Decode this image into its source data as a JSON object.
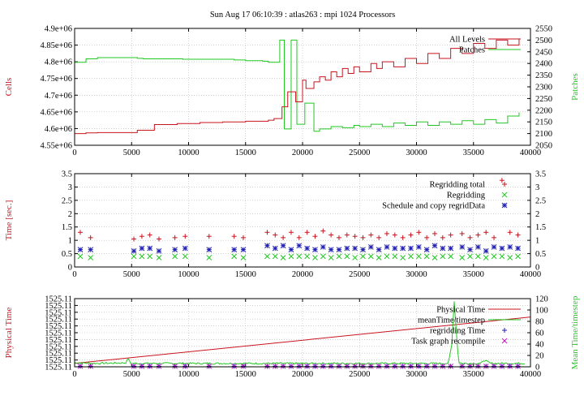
{
  "title": "Sun Aug 17 06:10:39 : atlas263 : mpi 1024 Processors",
  "colors": {
    "red": "#c8141e",
    "green": "#22c822",
    "blue": "#1e1eb4",
    "magenta": "#c814c8",
    "grid": "#b4b4b4"
  },
  "chart_data": [
    {
      "type": "line",
      "ylabel": "Cells",
      "y2label": "Patches",
      "xlim": [
        0,
        40000
      ],
      "xticks": [
        "0",
        "5000",
        "10000",
        "15000",
        "20000",
        "25000",
        "30000",
        "35000",
        "40000"
      ],
      "ylim": [
        4550000,
        4900000
      ],
      "yticks": [
        "4.55e+06",
        "4.6e+06",
        "4.65e+06",
        "4.7e+06",
        "4.75e+06",
        "4.8e+06",
        "4.85e+06",
        "4.9e+06"
      ],
      "y2lim": [
        2050,
        2550
      ],
      "y2ticks": [
        "2050",
        "2100",
        "2150",
        "2200",
        "2250",
        "2300",
        "2350",
        "2400",
        "2450",
        "2500",
        "2550"
      ],
      "grid": true,
      "legend_position": "top-right",
      "series": [
        {
          "name": "All Levels",
          "axis": "y1",
          "color": "red",
          "x": [
            0,
            1000,
            2000,
            5500,
            7000,
            9000,
            11000,
            13000,
            15000,
            17000,
            17500,
            18200,
            18700,
            19400,
            20000,
            20300,
            21000,
            21500,
            22000,
            22500,
            23000,
            23500,
            24000,
            24500,
            25000,
            26000,
            26500,
            27000,
            28000,
            29000,
            30000,
            31000,
            32000,
            33000,
            34000,
            35000,
            36000,
            37000,
            38000,
            39000
          ],
          "y": [
            4585000,
            4587000,
            4588000,
            4595000,
            4612000,
            4615000,
            4618000,
            4620000,
            4622000,
            4625000,
            4630000,
            4665000,
            4710000,
            4680000,
            4745000,
            4720000,
            4740000,
            4755000,
            4745000,
            4770000,
            4755000,
            4780000,
            4765000,
            4785000,
            4770000,
            4795000,
            4780000,
            4800000,
            4785000,
            4810000,
            4795000,
            4825000,
            4810000,
            4840000,
            4825000,
            4855000,
            4840000,
            4865000,
            4850000,
            4870000
          ]
        },
        {
          "name": "Patches",
          "axis": "y2",
          "color": "green",
          "x": [
            0,
            1000,
            2000,
            5500,
            6000,
            9500,
            11000,
            14000,
            15000,
            16500,
            17000,
            18000,
            18400,
            19000,
            19500,
            20200,
            21000,
            21500,
            22500,
            23500,
            24500,
            25000,
            26000,
            27000,
            28000,
            29000,
            30000,
            31000,
            32000,
            33000,
            34000,
            35000,
            36000,
            37000,
            38000,
            39000
          ],
          "y": [
            2405,
            2420,
            2425,
            2422,
            2420,
            2418,
            2418,
            2415,
            2412,
            2410,
            2405,
            2500,
            2120,
            2500,
            2140,
            2230,
            2110,
            2120,
            2130,
            2125,
            2135,
            2130,
            2140,
            2130,
            2145,
            2135,
            2150,
            2135,
            2150,
            2140,
            2155,
            2140,
            2160,
            2145,
            2175,
            2190
          ]
        }
      ]
    },
    {
      "type": "scatter",
      "ylabel": "Time [sec.]",
      "xlim": [
        0,
        40000
      ],
      "xticks": [
        "0",
        "5000",
        "10000",
        "15000",
        "20000",
        "25000",
        "30000",
        "35000",
        "40000"
      ],
      "ylim": [
        0,
        3.5
      ],
      "yticks": [
        "0",
        "0.5",
        "1",
        "1.5",
        "2",
        "2.5",
        "3",
        "3.5"
      ],
      "grid": true,
      "legend_position": "top-right",
      "x": [
        500,
        1400,
        5200,
        5900,
        6600,
        7400,
        8800,
        9700,
        11800,
        14000,
        14800,
        16900,
        17600,
        18300,
        19000,
        19700,
        20400,
        21100,
        21800,
        22500,
        23200,
        23900,
        24600,
        25300,
        26000,
        26700,
        27400,
        28100,
        28800,
        29500,
        30200,
        30900,
        31600,
        32300,
        33000,
        34000,
        34700,
        35400,
        36100,
        36800,
        37500,
        38200,
        38900
      ],
      "series": [
        {
          "name": "Regridding total",
          "color": "red",
          "marker": "+",
          "y": [
            1.3,
            1.1,
            1.05,
            1.15,
            1.2,
            1.05,
            1.1,
            1.15,
            1.15,
            1.15,
            1.1,
            1.3,
            1.2,
            1.1,
            1.3,
            1.1,
            1.3,
            1.15,
            1.35,
            1.2,
            1.1,
            1.2,
            1.15,
            1.1,
            1.2,
            1.1,
            1.25,
            1.2,
            1.1,
            1.2,
            1.3,
            1.1,
            1.25,
            1.1,
            1.2,
            1.25,
            1.1,
            1.2,
            1.3,
            1.1,
            3.25,
            1.3,
            1.2
          ]
        },
        {
          "name": "Regridding",
          "color": "green",
          "marker": "x",
          "y": [
            0.4,
            0.35,
            0.4,
            0.4,
            0.4,
            0.35,
            0.4,
            0.4,
            0.35,
            0.4,
            0.35,
            0.4,
            0.4,
            0.35,
            0.4,
            0.4,
            0.4,
            0.35,
            0.4,
            0.35,
            0.4,
            0.4,
            0.35,
            0.4,
            0.4,
            0.35,
            0.4,
            0.4,
            0.35,
            0.4,
            0.4,
            0.4,
            0.35,
            0.4,
            0.4,
            0.35,
            0.4,
            0.4,
            0.35,
            0.4,
            0.4,
            0.35,
            0.4
          ]
        },
        {
          "name": "Schedule and copy regridData",
          "color": "blue",
          "marker": "*",
          "y": [
            0.65,
            0.65,
            0.6,
            0.7,
            0.7,
            0.6,
            0.65,
            0.7,
            0.65,
            0.65,
            0.65,
            0.8,
            0.7,
            0.8,
            0.65,
            0.8,
            0.7,
            0.65,
            0.75,
            0.65,
            0.65,
            0.7,
            0.7,
            0.65,
            0.75,
            0.65,
            0.75,
            0.7,
            0.7,
            0.7,
            0.75,
            0.65,
            0.8,
            0.7,
            0.7,
            0.75,
            0.65,
            0.75,
            0.6,
            0.75,
            0.7,
            0.75,
            0.7
          ]
        }
      ]
    },
    {
      "type": "line",
      "ylabel": "Physical Time",
      "y2label": "Mean Time/timestep",
      "xlim": [
        0,
        40000
      ],
      "xticks": [
        "0",
        "5000",
        "10000",
        "15000",
        "20000",
        "25000",
        "30000",
        "35000",
        "40000"
      ],
      "yticks": [
        "1525.11",
        "1525.11",
        "1525.11",
        "1525.11",
        "1525.11",
        "1525.11",
        "1525.11",
        "1525.11",
        "1525.11",
        "1525.11",
        "1525.11"
      ],
      "y2lim": [
        0,
        120
      ],
      "y2ticks": [
        "0",
        "20",
        "40",
        "60",
        "80",
        "100",
        "120"
      ],
      "grid": true,
      "legend_position": "top-right",
      "series": [
        {
          "name": "Physical Time",
          "color": "red",
          "style": "line",
          "x": [
            0,
            40000
          ],
          "y_fraction": [
            0.05,
            0.73
          ]
        },
        {
          "name": "meanTime/timestep",
          "color": "green",
          "style": "line",
          "x": [
            0,
            2000,
            4500,
            4700,
            4900,
            6000,
            10000,
            15000,
            20000,
            25000,
            30000,
            32800,
            33100,
            33300,
            33500,
            33700,
            34000,
            35000,
            35700,
            35900,
            36500,
            40000
          ],
          "y": [
            7,
            6,
            7,
            15,
            6,
            6,
            6,
            6,
            6,
            6,
            6,
            6,
            40,
            118,
            60,
            8,
            6,
            6,
            6,
            12,
            6,
            6
          ]
        },
        {
          "name": "regridding Time",
          "color": "blue",
          "marker": "+",
          "x": [
            500,
            1400,
            5200,
            5900,
            6600,
            7400,
            8800,
            9700,
            11800,
            14000,
            14800,
            16900,
            17600,
            18300,
            19000,
            19700,
            20400,
            21100,
            21800,
            22500,
            23200,
            23900,
            24600,
            25300,
            26000,
            26700,
            27400,
            28100,
            28800,
            29500,
            30200,
            30900,
            31600,
            32300,
            33000,
            34000,
            34700,
            35400,
            36100,
            36800,
            37500,
            38200,
            38900
          ],
          "y": [
            1,
            1,
            1,
            1,
            1,
            1,
            1,
            1,
            1,
            1,
            1,
            1,
            1,
            1,
            1,
            1,
            1,
            1,
            1,
            1,
            1,
            1,
            1,
            1,
            1,
            1,
            1,
            1,
            1,
            1,
            1,
            1,
            1,
            1,
            1,
            1,
            1,
            1,
            1,
            1,
            1,
            1,
            1
          ]
        },
        {
          "name": "Task graph recompile",
          "color": "magenta",
          "marker": "x",
          "x": [
            500,
            1400,
            5200,
            5900,
            6600,
            7400,
            8800,
            9700,
            11800,
            14000,
            14800,
            16900,
            17600,
            18300,
            19000,
            19700,
            20400,
            21100,
            21800,
            22500,
            23200,
            23900,
            24600,
            25300,
            26000,
            26700,
            27400,
            28100,
            28800,
            29500,
            30200,
            30900,
            31600,
            32300,
            33000,
            34000,
            34700,
            35400,
            36100,
            36800,
            37500,
            38200,
            38900
          ],
          "y": [
            1,
            1,
            1,
            1,
            1,
            1,
            1,
            1,
            1,
            1,
            1,
            1,
            1,
            1,
            1,
            1,
            1,
            1,
            1,
            1,
            1,
            1,
            1,
            1,
            1,
            1,
            1,
            1,
            1,
            1,
            1,
            1,
            1,
            1,
            1,
            1,
            1,
            1,
            1,
            1,
            1,
            1,
            1
          ]
        }
      ]
    }
  ]
}
